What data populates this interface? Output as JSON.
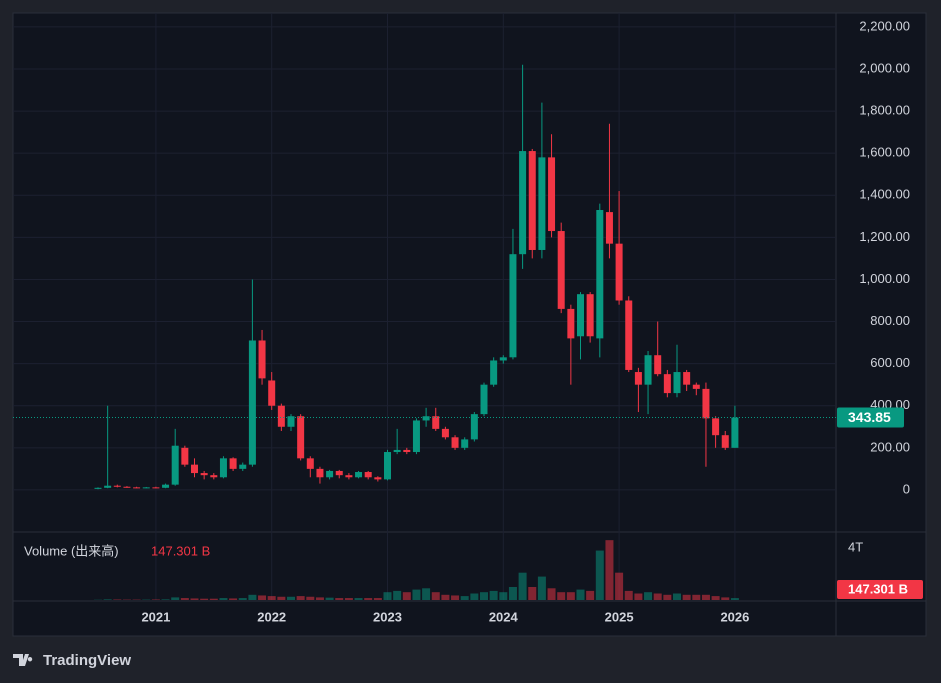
{
  "chart_data": {
    "type": "candlestick",
    "categories": [
      null,
      null,
      null,
      null,
      null,
      null,
      "2021",
      null,
      null,
      null,
      null,
      null,
      null,
      null,
      null,
      null,
      null,
      null,
      "2022",
      null,
      null,
      null,
      null,
      null,
      null,
      null,
      null,
      null,
      null,
      null,
      "2023",
      null,
      null,
      null,
      null,
      null,
      null,
      null,
      null,
      null,
      null,
      null,
      "2024",
      null,
      null,
      null,
      null,
      null,
      null,
      null,
      null,
      null,
      null,
      null,
      "2025",
      null,
      null,
      null,
      null,
      null,
      null,
      null,
      null,
      null,
      null,
      null,
      "2026"
    ],
    "open": [
      5,
      10,
      20,
      15,
      12,
      10,
      12,
      10,
      25,
      200,
      120,
      80,
      70,
      60,
      150,
      100,
      120,
      710,
      520,
      400,
      300,
      350,
      150,
      100,
      60,
      90,
      70,
      60,
      85,
      60,
      50,
      180,
      190,
      180,
      330,
      350,
      290,
      250,
      200,
      240,
      360,
      500,
      615,
      630,
      1120,
      1610,
      1140,
      1580,
      1230,
      860,
      730,
      930,
      720,
      1320,
      1170,
      900,
      560,
      500,
      640,
      550,
      460,
      560,
      500,
      480,
      340,
      260,
      200
    ],
    "high": [
      12,
      400,
      25,
      18,
      15,
      14,
      15,
      30,
      290,
      210,
      150,
      90,
      80,
      160,
      155,
      130,
      1000,
      760,
      560,
      410,
      360,
      360,
      160,
      110,
      95,
      95,
      80,
      90,
      90,
      65,
      190,
      290,
      200,
      340,
      390,
      390,
      300,
      260,
      250,
      370,
      510,
      630,
      640,
      1240,
      2020,
      1620,
      1840,
      1690,
      1270,
      880,
      940,
      940,
      1360,
      1740,
      1420,
      920,
      580,
      660,
      800,
      570,
      690,
      570,
      510,
      510,
      350,
      280,
      400
    ],
    "low": [
      3,
      8,
      12,
      10,
      8,
      8,
      8,
      8,
      20,
      110,
      60,
      50,
      50,
      55,
      90,
      90,
      110,
      500,
      380,
      280,
      280,
      140,
      60,
      30,
      50,
      55,
      50,
      55,
      50,
      40,
      45,
      170,
      170,
      170,
      300,
      280,
      240,
      190,
      190,
      230,
      350,
      490,
      600,
      620,
      1050,
      1100,
      1100,
      1200,
      840,
      500,
      620,
      700,
      630,
      1100,
      880,
      560,
      370,
      360,
      540,
      440,
      440,
      470,
      450,
      110,
      200,
      190,
      200
    ],
    "close": [
      10,
      20,
      15,
      12,
      10,
      12,
      10,
      25,
      210,
      120,
      80,
      70,
      60,
      150,
      100,
      120,
      710,
      530,
      400,
      300,
      350,
      150,
      100,
      60,
      90,
      70,
      60,
      85,
      60,
      50,
      180,
      190,
      180,
      330,
      350,
      290,
      250,
      200,
      240,
      360,
      500,
      615,
      630,
      1120,
      1610,
      1140,
      1580,
      1230,
      860,
      720,
      930,
      730,
      1330,
      1170,
      900,
      570,
      500,
      640,
      550,
      460,
      560,
      500,
      480,
      340,
      260,
      200,
      343.85
    ],
    "up_color": "#089981",
    "down_color": "#f23645",
    "ylim": [
      -200,
      2266
    ],
    "yticks": [
      0,
      {
        "value": 200,
        "label": "200.00"
      },
      {
        "value": 400,
        "label": "400.00"
      },
      {
        "value": 600,
        "label": "600.00"
      },
      {
        "value": 800,
        "label": "800.00"
      },
      {
        "value": 1000,
        "label": "1,000.00"
      },
      {
        "value": 1200,
        "label": "1,200.00"
      },
      {
        "value": 1400,
        "label": "1,400.00"
      },
      {
        "value": 1600,
        "label": "1,600.00"
      },
      {
        "value": 1800,
        "label": "1,800.00"
      },
      {
        "value": 2000,
        "label": "2,000.00"
      },
      {
        "value": 2200,
        "label": "2,200.00"
      }
    ],
    "grid": true,
    "volume": {
      "name": "Volume (出来高)",
      "values": [
        0.02,
        0.05,
        0.04,
        0.03,
        0.03,
        0.03,
        0.04,
        0.05,
        0.2,
        0.15,
        0.12,
        0.1,
        0.1,
        0.15,
        0.12,
        0.15,
        0.4,
        0.35,
        0.3,
        0.25,
        0.25,
        0.3,
        0.25,
        0.2,
        0.18,
        0.15,
        0.15,
        0.15,
        0.15,
        0.15,
        0.6,
        0.7,
        0.6,
        0.8,
        0.9,
        0.6,
        0.4,
        0.35,
        0.3,
        0.5,
        0.6,
        0.7,
        0.6,
        1.0,
        2.1,
        1.0,
        1.8,
        0.9,
        0.6,
        0.6,
        0.8,
        0.7,
        3.8,
        4.6,
        2.1,
        0.7,
        0.5,
        0.6,
        0.5,
        0.4,
        0.5,
        0.4,
        0.4,
        0.4,
        0.3,
        0.2,
        0.147301
      ],
      "last_value_label": "147.301 B",
      "ylim": [
        0,
        5.15
      ],
      "yticks": [
        {
          "value": 4,
          "label": "4T"
        }
      ]
    }
  },
  "branding": "TradingView"
}
